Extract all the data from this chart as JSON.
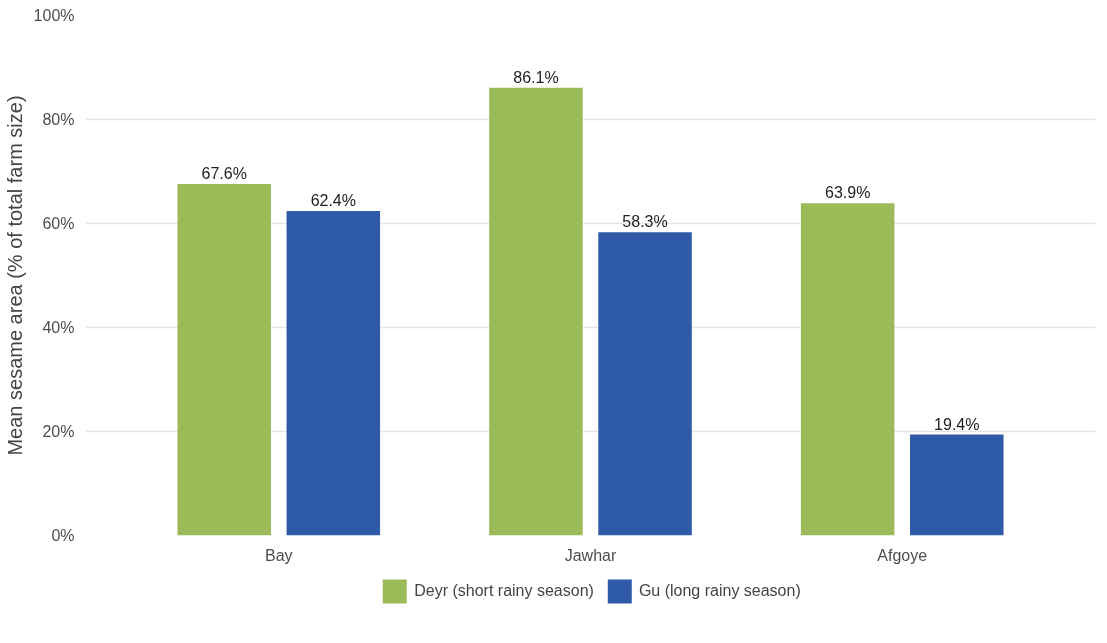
{
  "chart_data": {
    "type": "bar",
    "ylabel": "Mean sesame area (% of total farm size)",
    "categories": [
      "Bay",
      "Jawhar",
      "Afgoye"
    ],
    "series": [
      {
        "name": "Deyr (short rainy season)",
        "color": "#9bbb59",
        "values": [
          67.6,
          86.1,
          63.9
        ],
        "value_labels": [
          "67.6%",
          "86.1%",
          "63.9%"
        ]
      },
      {
        "name": "Gu (long rainy season)",
        "color": "#2e5aa8",
        "values": [
          62.4,
          58.3,
          19.4
        ],
        "value_labels": [
          "62.4%",
          "58.3%",
          "19.4%"
        ]
      }
    ],
    "ylim": [
      0,
      100
    ],
    "yticks": [
      {
        "value": 0,
        "label": "0%"
      },
      {
        "value": 20,
        "label": "20%"
      },
      {
        "value": 40,
        "label": "40%"
      },
      {
        "value": 60,
        "label": "60%"
      },
      {
        "value": 80,
        "label": "80%"
      },
      {
        "value": 100,
        "label": "100%"
      }
    ],
    "grid": "y",
    "legend": "bottom"
  }
}
